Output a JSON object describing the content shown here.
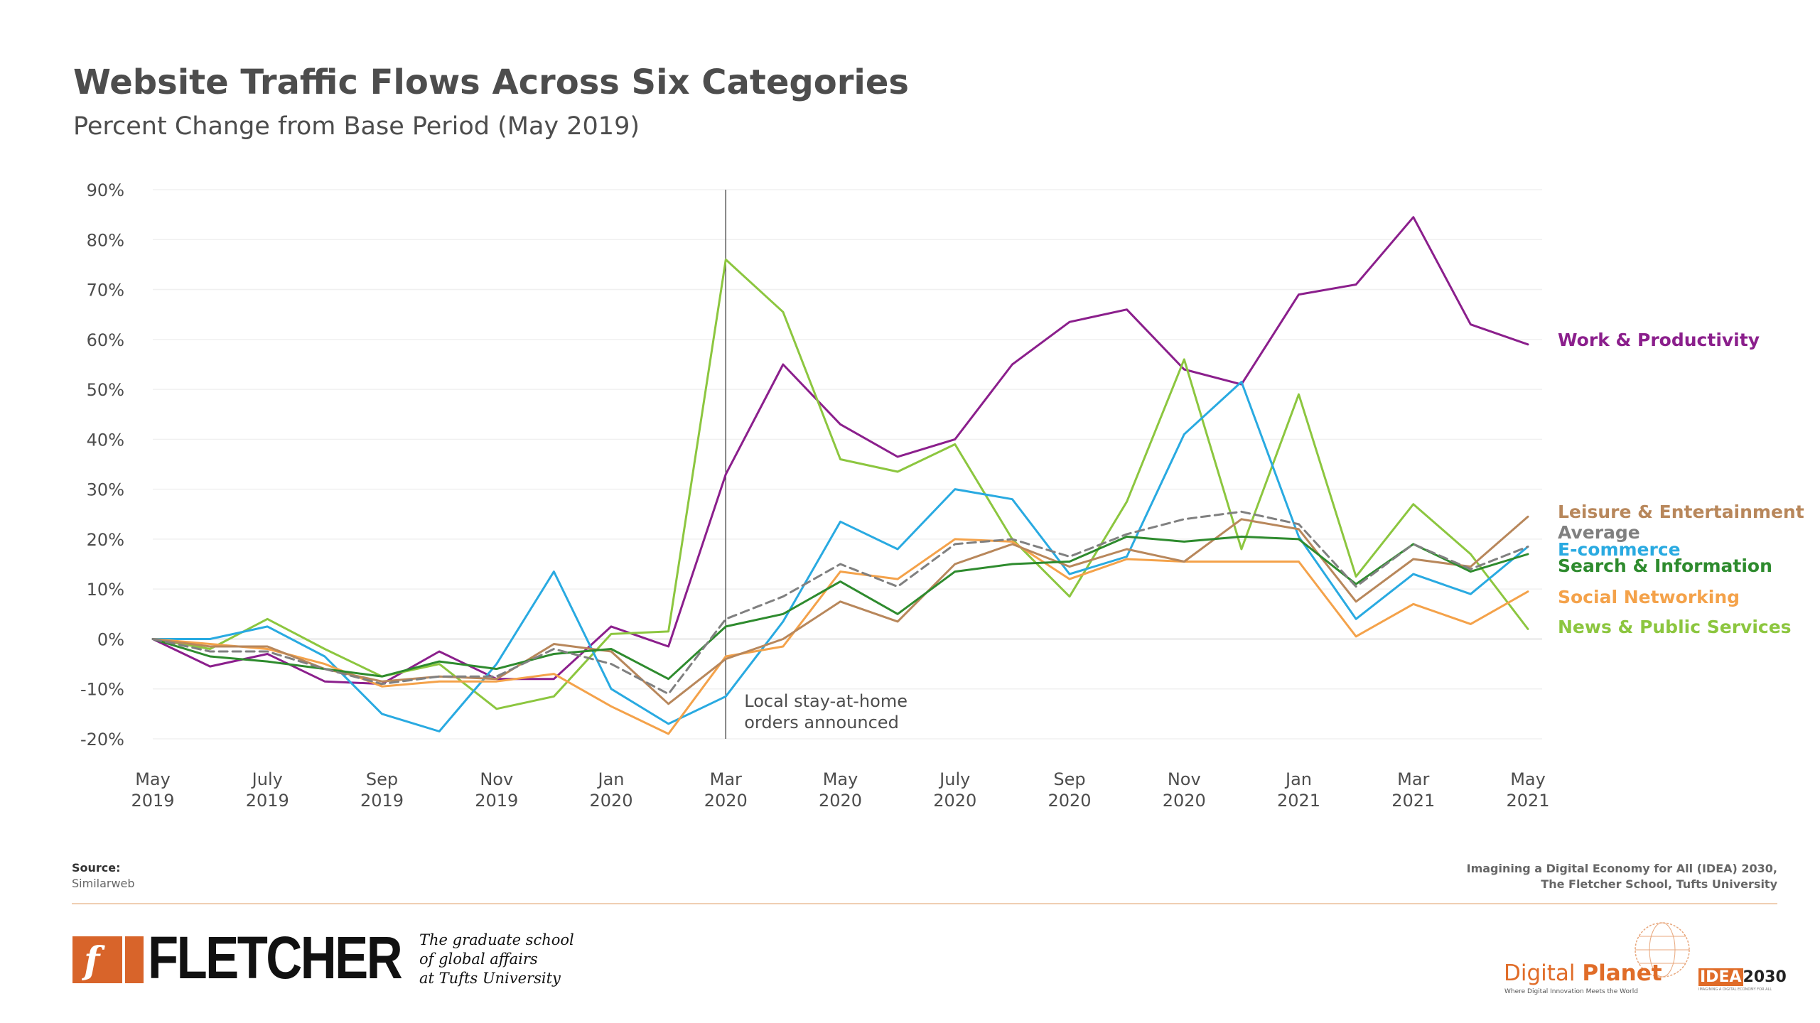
{
  "title": "Website Traffic Flows Across Six Categories",
  "subtitle": "Percent Change from Base Period (May 2019)",
  "chart_data": {
    "type": "line",
    "ylim": [
      -20,
      90
    ],
    "y_ticks": [
      90,
      80,
      70,
      60,
      50,
      40,
      30,
      20,
      10,
      0,
      -10,
      -20
    ],
    "y_tick_labels": [
      "90%",
      "80%",
      "70%",
      "60%",
      "50%",
      "40%",
      "30%",
      "20%",
      "10%",
      "0%",
      "-10%",
      "-20%"
    ],
    "x": [
      "May 2019",
      "Jun 2019",
      "Jul 2019",
      "Aug 2019",
      "Sep 2019",
      "Oct 2019",
      "Nov 2019",
      "Dec 2019",
      "Jan 2020",
      "Feb 2020",
      "Mar 2020",
      "Apr 2020",
      "May 2020",
      "Jun 2020",
      "Jul 2020",
      "Aug 2020",
      "Sep 2020",
      "Oct 2020",
      "Nov 2020",
      "Dec 2020",
      "Jan 2021",
      "Feb 2021",
      "Mar 2021",
      "Apr 2021",
      "May 2021"
    ],
    "x_tick_labels": [
      {
        "index": 0,
        "line1": "May",
        "line2": "2019"
      },
      {
        "index": 2,
        "line1": "July",
        "line2": "2019"
      },
      {
        "index": 4,
        "line1": "Sep",
        "line2": "2019"
      },
      {
        "index": 6,
        "line1": "Nov",
        "line2": "2019"
      },
      {
        "index": 8,
        "line1": "Jan",
        "line2": "2020"
      },
      {
        "index": 10,
        "line1": "Mar",
        "line2": "2020"
      },
      {
        "index": 12,
        "line1": "May",
        "line2": "2020"
      },
      {
        "index": 14,
        "line1": "July",
        "line2": "2020"
      },
      {
        "index": 16,
        "line1": "Sep",
        "line2": "2020"
      },
      {
        "index": 18,
        "line1": "Nov",
        "line2": "2020"
      },
      {
        "index": 20,
        "line1": "Jan",
        "line2": "2021"
      },
      {
        "index": 22,
        "line1": "Mar",
        "line2": "2021"
      },
      {
        "index": 24,
        "line1": "May",
        "line2": "2021"
      }
    ],
    "annotation": {
      "index": 10,
      "line1": "Local stay-at-home",
      "line2": "orders announced"
    },
    "grid": true,
    "series": [
      {
        "name": "Work & Productivity",
        "color": "#8b1f8c",
        "dashed": false,
        "values": [
          0,
          -5.5,
          -3,
          -8.5,
          -9,
          -2.5,
          -8,
          -8,
          2.5,
          -1.5,
          33,
          55,
          43,
          36.5,
          40,
          55,
          63.5,
          66,
          54,
          51,
          69,
          71,
          84.5,
          63,
          59
        ]
      },
      {
        "name": "News & Public Services",
        "color": "#8cc63f",
        "dashed": false,
        "values": [
          0,
          -2,
          4,
          -2,
          -7.5,
          -5,
          -14,
          -11.5,
          1,
          1.5,
          76,
          65.5,
          36,
          33.5,
          39,
          20,
          8.5,
          27.5,
          56,
          18,
          49,
          12.5,
          27,
          17,
          2
        ]
      },
      {
        "name": "E-commerce",
        "color": "#29aae1",
        "dashed": false,
        "values": [
          0,
          0,
          2.5,
          -3.5,
          -15,
          -18.5,
          -5,
          13.5,
          -10,
          -17,
          -11.5,
          3.5,
          23.5,
          18,
          30,
          28,
          13,
          16.5,
          41,
          51.5,
          20.5,
          4,
          13,
          9,
          18.5
        ]
      },
      {
        "name": "Social Networking",
        "color": "#f4a24a",
        "dashed": false,
        "values": [
          0,
          -1,
          -2,
          -5,
          -9.5,
          -8.5,
          -8.5,
          -7,
          -13.5,
          -19,
          -3.5,
          -1.5,
          13.5,
          12,
          20,
          19.5,
          12,
          16,
          15.5,
          15.5,
          15.5,
          0.5,
          7,
          3,
          9.5
        ]
      },
      {
        "name": "Leisure & Entertainment",
        "color": "#b8875b",
        "dashed": false,
        "values": [
          0,
          -1.5,
          -1.5,
          -6,
          -8.5,
          -7.5,
          -8,
          -1,
          -2.5,
          -13,
          -4,
          0,
          7.5,
          3.5,
          15,
          19,
          14.5,
          18,
          15.5,
          24,
          22,
          7.5,
          16,
          14.5,
          24.5
        ]
      },
      {
        "name": "Search & Information",
        "color": "#2e8b2e",
        "dashed": false,
        "values": [
          0,
          -3.5,
          -4.5,
          -6,
          -7.5,
          -4.5,
          -6,
          -3,
          -2,
          -8,
          2.5,
          5,
          11.5,
          5,
          13.5,
          15,
          15.5,
          20.5,
          19.5,
          20.5,
          20,
          11,
          19,
          13.5,
          17
        ]
      },
      {
        "name": "Average",
        "color": "#808080",
        "dashed": true,
        "values": [
          0,
          -2.5,
          -2.5,
          -6,
          -9,
          -7.5,
          -7.5,
          -2,
          -5,
          -11,
          4,
          8.5,
          15,
          10.5,
          19,
          20,
          16.5,
          21,
          24,
          25.5,
          23,
          10.5,
          19,
          14,
          18.5
        ]
      }
    ],
    "end_labels": [
      {
        "text": "Work & Productivity",
        "color": "#8b1f8c"
      },
      {
        "text": "Leisure & Entertainment",
        "color": "#b8875b"
      },
      {
        "text": "Average",
        "color": "#808080"
      },
      {
        "text": "E-commerce",
        "color": "#29aae1"
      },
      {
        "text": "Search & Information",
        "color": "#2e8b2e"
      },
      {
        "text": "Social Networking",
        "color": "#f4a24a"
      },
      {
        "text": "News & Public Services",
        "color": "#8cc63f"
      }
    ]
  },
  "footer": {
    "source_label": "Source:",
    "source_name": "Similarweb",
    "credit_line1": "Imagining a Digital Economy for All (IDEA) 2030,",
    "credit_line2": "The Fletcher School, Tufts University",
    "fletcher_logo": "FLETCHER",
    "fletcher_mark": "f",
    "tagline_line1": "The graduate school",
    "tagline_line2": "of global affairs",
    "tagline_line3": "at Tufts University",
    "dp_word1": "Digital ",
    "dp_word2": "Planet",
    "dp_tagline": "Where Digital Innovation Meets the World",
    "idea_box": "IDEA",
    "idea_year": "2030",
    "idea_sub": "IMAGINING A DIGITAL ECONOMY FOR ALL",
    "brand_color": "#e06c28"
  }
}
